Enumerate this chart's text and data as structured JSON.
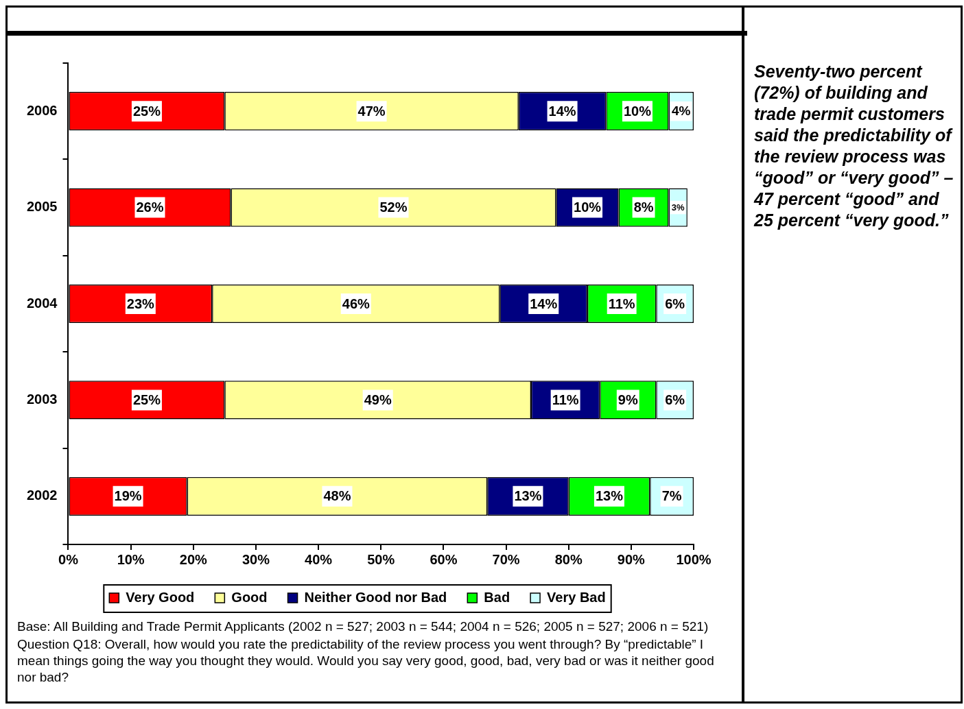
{
  "chart_data": {
    "type": "bar",
    "orientation": "horizontal",
    "stacked": true,
    "categories": [
      "2006",
      "2005",
      "2004",
      "2003",
      "2002"
    ],
    "series": [
      {
        "name": "Very Good",
        "color": "#ff0000",
        "values": [
          25,
          26,
          23,
          25,
          19
        ],
        "value_labels": [
          "25%",
          "26%",
          "23%",
          "25%",
          "19%"
        ]
      },
      {
        "name": "Good",
        "color": "#ffff99",
        "values": [
          47,
          52,
          46,
          49,
          48
        ],
        "value_labels": [
          "47%",
          "52%",
          "46%",
          "49%",
          "48%"
        ]
      },
      {
        "name": "Neither Good nor Bad",
        "color": "#000080",
        "values": [
          14,
          10,
          14,
          11,
          13
        ],
        "value_labels": [
          "14%",
          "10%",
          "14%",
          "11%",
          "13%"
        ]
      },
      {
        "name": "Bad",
        "color": "#00ff00",
        "values": [
          10,
          8,
          11,
          9,
          13
        ],
        "value_labels": [
          "10%",
          "8%",
          "11%",
          "9%",
          "13%"
        ]
      },
      {
        "name": "Very Bad",
        "color": "#ccffff",
        "values": [
          4,
          3,
          6,
          6,
          7
        ],
        "value_labels": [
          "4%",
          "3%",
          "6%",
          "6%",
          "7%"
        ]
      }
    ],
    "xlim": [
      0,
      100
    ],
    "xticks": [
      {
        "value": 0,
        "label": "0%"
      },
      {
        "value": 10,
        "label": "10%"
      },
      {
        "value": 20,
        "label": "20%"
      },
      {
        "value": 30,
        "label": "30%"
      },
      {
        "value": 40,
        "label": "40%"
      },
      {
        "value": 50,
        "label": "50%"
      },
      {
        "value": 60,
        "label": "60%"
      },
      {
        "value": 70,
        "label": "70%"
      },
      {
        "value": 80,
        "label": "80%"
      },
      {
        "value": 90,
        "label": "90%"
      },
      {
        "value": 100,
        "label": "100%"
      }
    ],
    "grid": false,
    "legend": "bottom",
    "annotations": [
      "Seventy-two percent (72%) of building and trade permit customers said the predictability of the review process was “good” or “very good” – 47 percent “good” and 25 percent “very good.”",
      "Base: All Building and Trade Permit Applicants (2002 n = 527; 2003 n = 544; 2004 n = 526; 2005 n = 527; 2006 n = 521)",
      "Question Q18: Overall, how would you rate the predictability of the review process you went through? By “predictable” I mean things going the way you thought they would. Would you say very good, good, bad, very bad or was it neither good nor bad?"
    ]
  }
}
